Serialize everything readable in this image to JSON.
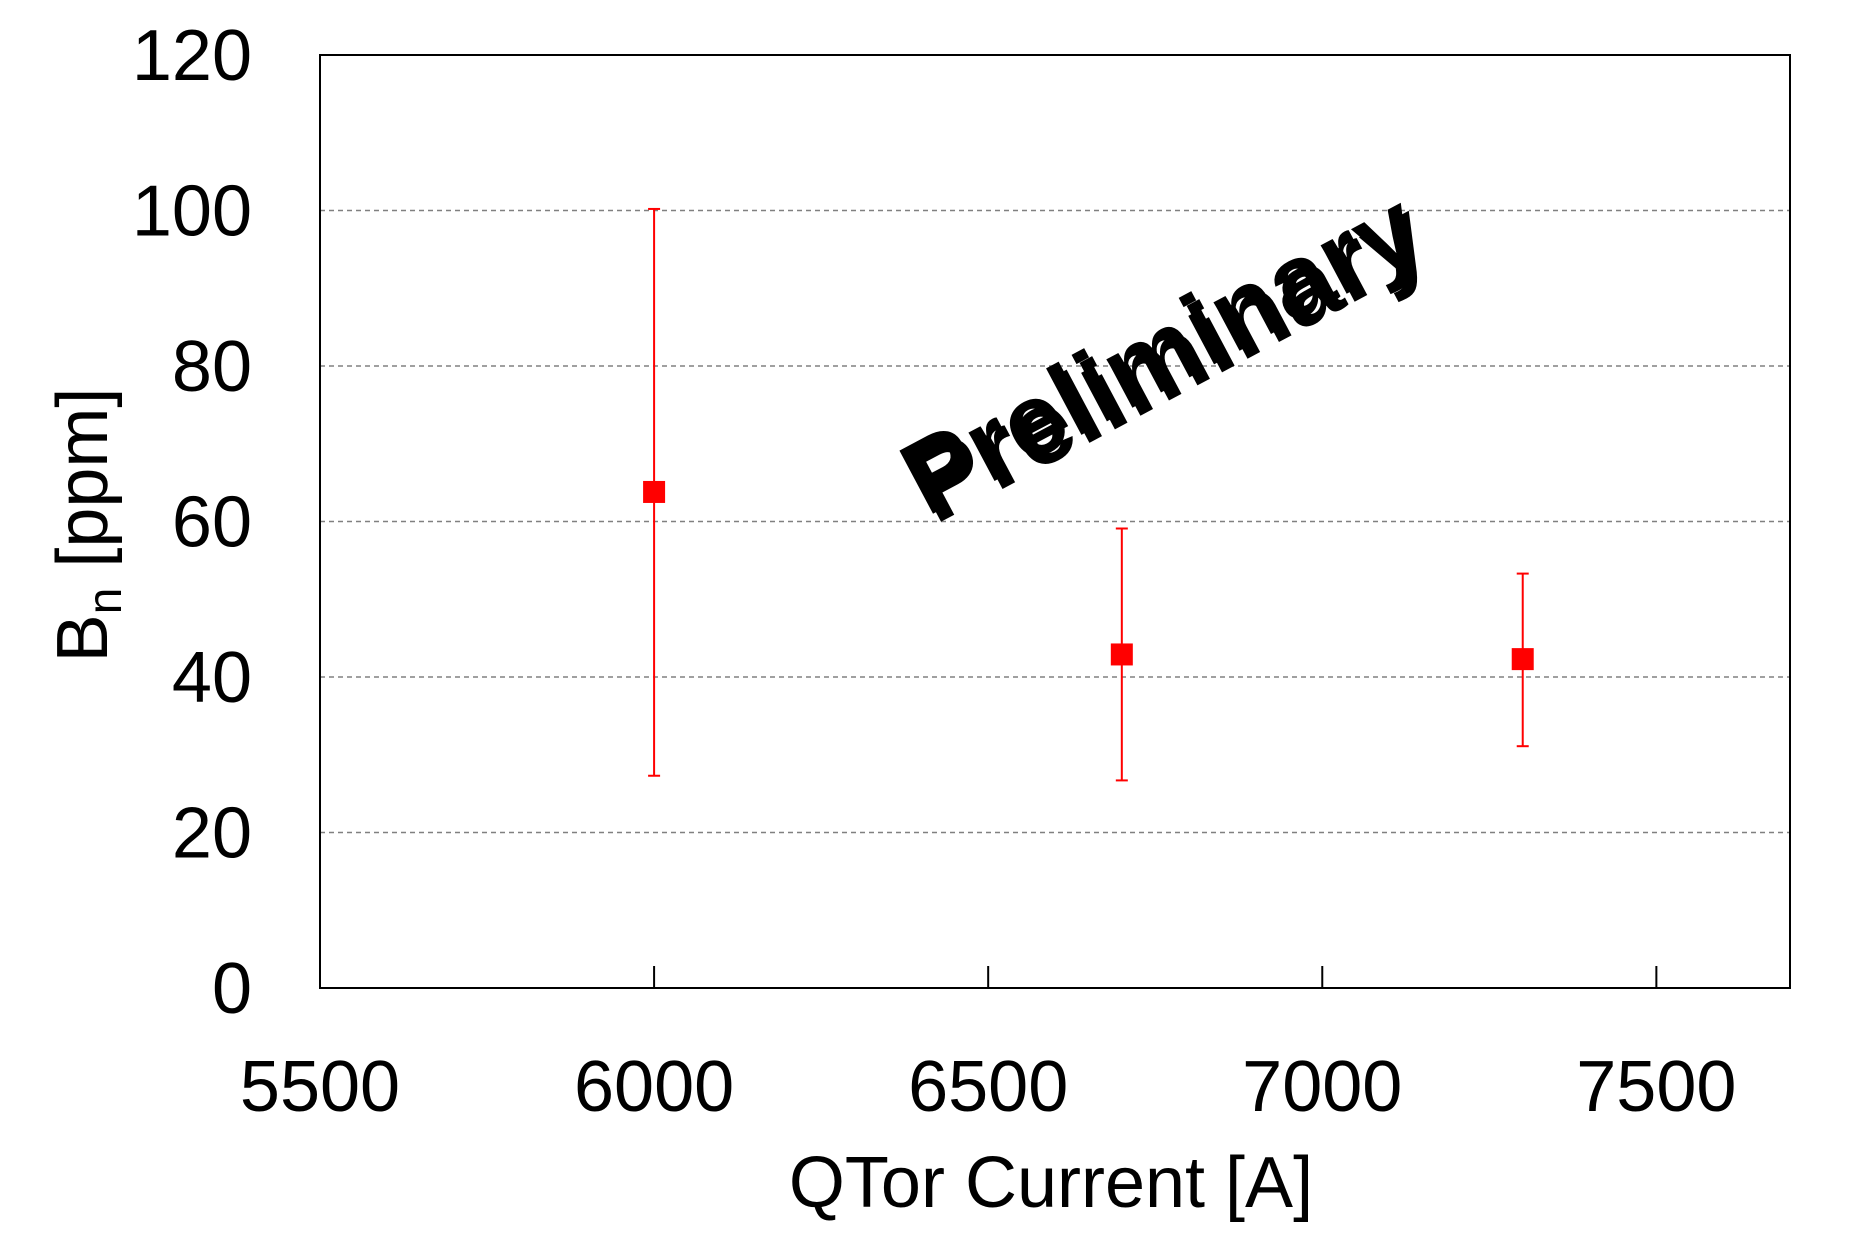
{
  "chart_data": {
    "type": "scatter",
    "title": "",
    "xlabel": "QTor Current [A]",
    "ylabel_main": "B",
    "ylabel_sub": "n",
    "ylabel_unit": " [ppm]",
    "xlim": [
      5500,
      7700
    ],
    "ylim": [
      0,
      120
    ],
    "xticks": [
      5500,
      6000,
      6500,
      7000,
      7500
    ],
    "yticks": [
      0,
      20,
      40,
      60,
      80,
      100,
      120
    ],
    "grid": {
      "y": true,
      "x": false
    },
    "series": [
      {
        "marker": "square",
        "color": "#ff0000",
        "points": [
          {
            "x": 6000,
            "y": 63.8,
            "ylow": 27.3,
            "yhigh": 100.2
          },
          {
            "x": 6700,
            "y": 42.9,
            "ylow": 26.7,
            "yhigh": 59.1
          },
          {
            "x": 7300,
            "y": 42.3,
            "ylow": 31.1,
            "yhigh": 53.3
          }
        ]
      }
    ],
    "annotation": {
      "text": "Preliminary",
      "color": "#ff4dff",
      "rotation_deg": -28
    }
  }
}
